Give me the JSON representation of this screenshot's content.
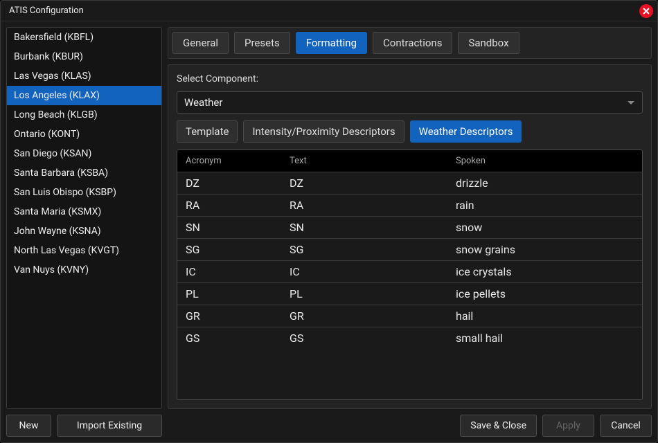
{
  "window": {
    "title": "ATIS Configuration"
  },
  "colors": {
    "accent": "#1163be",
    "bg": "#1a1a1a",
    "panel": "#232323",
    "border": "#3a3a3a",
    "close": "#e81123"
  },
  "sidebar": {
    "stations": [
      {
        "label": "Bakersfield (KBFL)",
        "selected": false
      },
      {
        "label": "Burbank (KBUR)",
        "selected": false
      },
      {
        "label": "Las Vegas (KLAS)",
        "selected": false
      },
      {
        "label": "Los Angeles (KLAX)",
        "selected": true
      },
      {
        "label": "Long Beach (KLGB)",
        "selected": false
      },
      {
        "label": "Ontario (KONT)",
        "selected": false
      },
      {
        "label": "San Diego (KSAN)",
        "selected": false
      },
      {
        "label": "Santa Barbara (KSBA)",
        "selected": false
      },
      {
        "label": "San Luis Obispo (KSBP)",
        "selected": false
      },
      {
        "label": "Santa Maria (KSMX)",
        "selected": false
      },
      {
        "label": "John Wayne (KSNA)",
        "selected": false
      },
      {
        "label": "North Las Vegas (KVGT)",
        "selected": false
      },
      {
        "label": "Van Nuys (KVNY)",
        "selected": false
      }
    ],
    "buttons": {
      "new": "New",
      "import": "Import Existing"
    }
  },
  "main": {
    "tabs": [
      {
        "label": "General",
        "active": false
      },
      {
        "label": "Presets",
        "active": false
      },
      {
        "label": "Formatting",
        "active": true
      },
      {
        "label": "Contractions",
        "active": false
      },
      {
        "label": "Sandbox",
        "active": false
      }
    ],
    "component": {
      "label": "Select Component:",
      "selected": "Weather"
    },
    "subtabs": [
      {
        "label": "Template",
        "active": false
      },
      {
        "label": "Intensity/Proximity Descriptors",
        "active": false
      },
      {
        "label": "Weather Descriptors",
        "active": true
      }
    ],
    "table": {
      "columns": [
        "Acronym",
        "Text",
        "Spoken"
      ],
      "rows": [
        {
          "acronym": "DZ",
          "text": "DZ",
          "spoken": "drizzle"
        },
        {
          "acronym": "RA",
          "text": "RA",
          "spoken": "rain"
        },
        {
          "acronym": "SN",
          "text": "SN",
          "spoken": "snow"
        },
        {
          "acronym": "SG",
          "text": "SG",
          "spoken": "snow grains"
        },
        {
          "acronym": "IC",
          "text": "IC",
          "spoken": "ice crystals"
        },
        {
          "acronym": "PL",
          "text": "PL",
          "spoken": "ice pellets"
        },
        {
          "acronym": "GR",
          "text": "GR",
          "spoken": "hail"
        },
        {
          "acronym": "GS",
          "text": "GS",
          "spoken": "small hail"
        }
      ]
    },
    "footer": {
      "save_close": "Save & Close",
      "apply": "Apply",
      "cancel": "Cancel"
    }
  }
}
